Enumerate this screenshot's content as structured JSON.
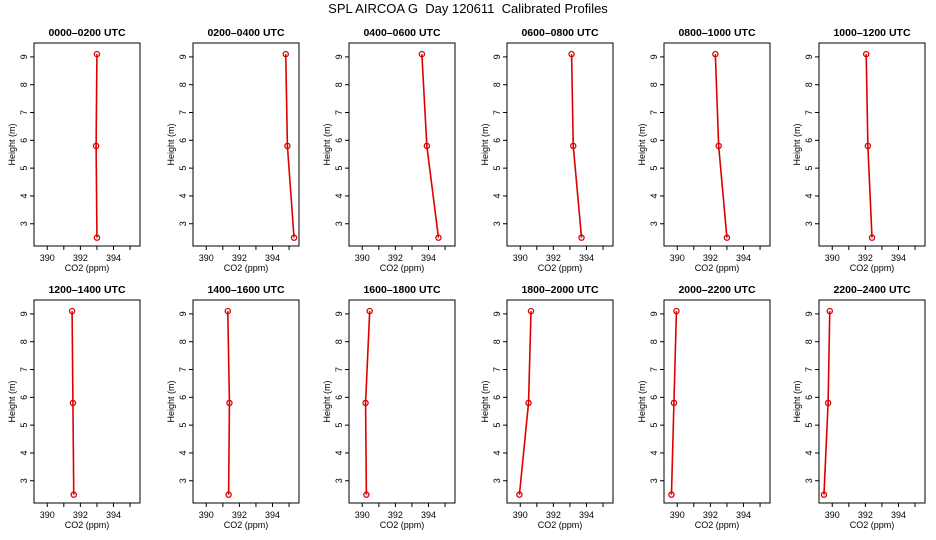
{
  "figure_title": "SPL AIRCOA G  Day 120611  Calibrated Profiles",
  "series_color": "#dd0000",
  "chart_data": [
    {
      "type": "line",
      "title": "0000–0200 UTC",
      "xlabel": "CO2 (ppm)",
      "ylabel": "Height (m)",
      "xlim": [
        389.2,
        395.6
      ],
      "ylim": [
        2.2,
        9.5
      ],
      "xticks": [
        390,
        392,
        394
      ],
      "yticks": [
        3,
        4,
        5,
        6,
        7,
        8,
        9
      ],
      "heights": [
        2.5,
        5.8,
        9.1
      ],
      "co2": [
        393.0,
        392.95,
        393.0
      ]
    },
    {
      "type": "line",
      "title": "0200–0400 UTC",
      "xlabel": "CO2 (ppm)",
      "ylabel": "Height (m)",
      "xlim": [
        389.2,
        395.6
      ],
      "ylim": [
        2.2,
        9.5
      ],
      "xticks": [
        390,
        392,
        394
      ],
      "yticks": [
        3,
        4,
        5,
        6,
        7,
        8,
        9
      ],
      "heights": [
        2.5,
        5.8,
        9.1
      ],
      "co2": [
        395.3,
        394.9,
        394.8
      ]
    },
    {
      "type": "line",
      "title": "0400–0600 UTC",
      "xlabel": "CO2 (ppm)",
      "ylabel": "Height (m)",
      "xlim": [
        389.2,
        395.6
      ],
      "ylim": [
        2.2,
        9.5
      ],
      "xticks": [
        390,
        392,
        394
      ],
      "yticks": [
        3,
        4,
        5,
        6,
        7,
        8,
        9
      ],
      "heights": [
        2.5,
        5.8,
        9.1
      ],
      "co2": [
        394.6,
        393.9,
        393.6
      ]
    },
    {
      "type": "line",
      "title": "0600–0800 UTC",
      "xlabel": "CO2 (ppm)",
      "ylabel": "Height (m)",
      "xlim": [
        389.2,
        395.6
      ],
      "ylim": [
        2.2,
        9.5
      ],
      "xticks": [
        390,
        392,
        394
      ],
      "yticks": [
        3,
        4,
        5,
        6,
        7,
        8,
        9
      ],
      "heights": [
        2.5,
        5.8,
        9.1
      ],
      "co2": [
        393.7,
        393.2,
        393.1
      ]
    },
    {
      "type": "line",
      "title": "0800–1000 UTC",
      "xlabel": "CO2 (ppm)",
      "ylabel": "Height (m)",
      "xlim": [
        389.2,
        395.6
      ],
      "ylim": [
        2.2,
        9.5
      ],
      "xticks": [
        390,
        392,
        394
      ],
      "yticks": [
        3,
        4,
        5,
        6,
        7,
        8,
        9
      ],
      "heights": [
        2.5,
        5.8,
        9.1
      ],
      "co2": [
        393.0,
        392.5,
        392.3
      ]
    },
    {
      "type": "line",
      "title": "1000–1200 UTC",
      "xlabel": "CO2 (ppm)",
      "ylabel": "Height (m)",
      "xlim": [
        389.2,
        395.6
      ],
      "ylim": [
        2.2,
        9.5
      ],
      "xticks": [
        390,
        392,
        394
      ],
      "yticks": [
        3,
        4,
        5,
        6,
        7,
        8,
        9
      ],
      "heights": [
        2.5,
        5.8,
        9.1
      ],
      "co2": [
        392.4,
        392.15,
        392.05
      ]
    },
    {
      "type": "line",
      "title": "1200–1400 UTC",
      "xlabel": "CO2 (ppm)",
      "ylabel": "Height (m)",
      "xlim": [
        389.2,
        395.6
      ],
      "ylim": [
        2.2,
        9.5
      ],
      "xticks": [
        390,
        392,
        394
      ],
      "yticks": [
        3,
        4,
        5,
        6,
        7,
        8,
        9
      ],
      "heights": [
        2.5,
        5.8,
        9.1
      ],
      "co2": [
        391.6,
        391.55,
        391.5
      ]
    },
    {
      "type": "line",
      "title": "1400–1600 UTC",
      "xlabel": "CO2 (ppm)",
      "ylabel": "Height (m)",
      "xlim": [
        389.2,
        395.6
      ],
      "ylim": [
        2.2,
        9.5
      ],
      "xticks": [
        390,
        392,
        394
      ],
      "yticks": [
        3,
        4,
        5,
        6,
        7,
        8,
        9
      ],
      "heights": [
        2.5,
        5.8,
        9.1
      ],
      "co2": [
        391.35,
        391.4,
        391.3
      ]
    },
    {
      "type": "line",
      "title": "1600–1800 UTC",
      "xlabel": "CO2 (ppm)",
      "ylabel": "Height (m)",
      "xlim": [
        389.2,
        395.6
      ],
      "ylim": [
        2.2,
        9.5
      ],
      "xticks": [
        390,
        392,
        394
      ],
      "yticks": [
        3,
        4,
        5,
        6,
        7,
        8,
        9
      ],
      "heights": [
        2.5,
        5.8,
        9.1
      ],
      "co2": [
        390.25,
        390.2,
        390.45
      ]
    },
    {
      "type": "line",
      "title": "1800–2000 UTC",
      "xlabel": "CO2 (ppm)",
      "ylabel": "Height (m)",
      "xlim": [
        389.2,
        395.6
      ],
      "ylim": [
        2.2,
        9.5
      ],
      "xticks": [
        390,
        392,
        394
      ],
      "yticks": [
        3,
        4,
        5,
        6,
        7,
        8,
        9
      ],
      "heights": [
        2.5,
        5.8,
        9.1
      ],
      "co2": [
        389.95,
        390.5,
        390.65
      ]
    },
    {
      "type": "line",
      "title": "2000–2200 UTC",
      "xlabel": "CO2 (ppm)",
      "ylabel": "Height (m)",
      "xlim": [
        389.2,
        395.6
      ],
      "ylim": [
        2.2,
        9.5
      ],
      "xticks": [
        390,
        392,
        394
      ],
      "yticks": [
        3,
        4,
        5,
        6,
        7,
        8,
        9
      ],
      "heights": [
        2.5,
        5.8,
        9.1
      ],
      "co2": [
        389.65,
        389.8,
        389.95
      ]
    },
    {
      "type": "line",
      "title": "2200–2400 UTC",
      "xlabel": "CO2 (ppm)",
      "ylabel": "Height (m)",
      "xlim": [
        389.2,
        395.6
      ],
      "ylim": [
        2.2,
        9.5
      ],
      "xticks": [
        390,
        392,
        394
      ],
      "yticks": [
        3,
        4,
        5,
        6,
        7,
        8,
        9
      ],
      "heights": [
        2.5,
        5.8,
        9.1
      ],
      "co2": [
        389.5,
        389.75,
        389.85
      ]
    }
  ]
}
